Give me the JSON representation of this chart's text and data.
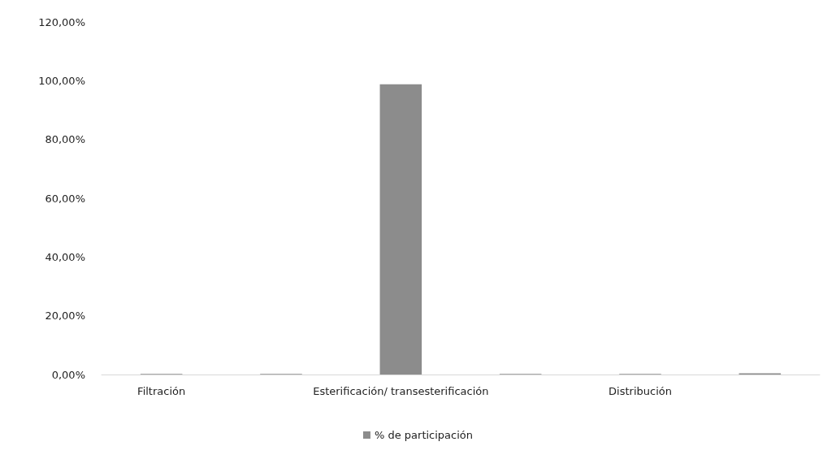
{
  "chart_data": {
    "type": "bar",
    "categories": [
      "Filtración",
      null,
      "Esterificación/ transesterificación",
      null,
      "Distribución",
      null
    ],
    "series": [
      {
        "name": "% de participación",
        "color": "#8c8c8c",
        "values": [
          0.2,
          0.2,
          98.8,
          0.2,
          0.2,
          0.4
        ]
      }
    ],
    "ylim": [
      0,
      120
    ],
    "yticks": [
      {
        "value": 0,
        "label": "0,00%"
      },
      {
        "value": 20,
        "label": "20,00%"
      },
      {
        "value": 40,
        "label": "40,00%"
      },
      {
        "value": 60,
        "label": "60,00%"
      },
      {
        "value": 80,
        "label": "80,00%"
      },
      {
        "value": 100,
        "label": "100,00%"
      },
      {
        "value": 120,
        "label": "120,00%"
      }
    ],
    "grid": false,
    "legend": "bottom"
  }
}
